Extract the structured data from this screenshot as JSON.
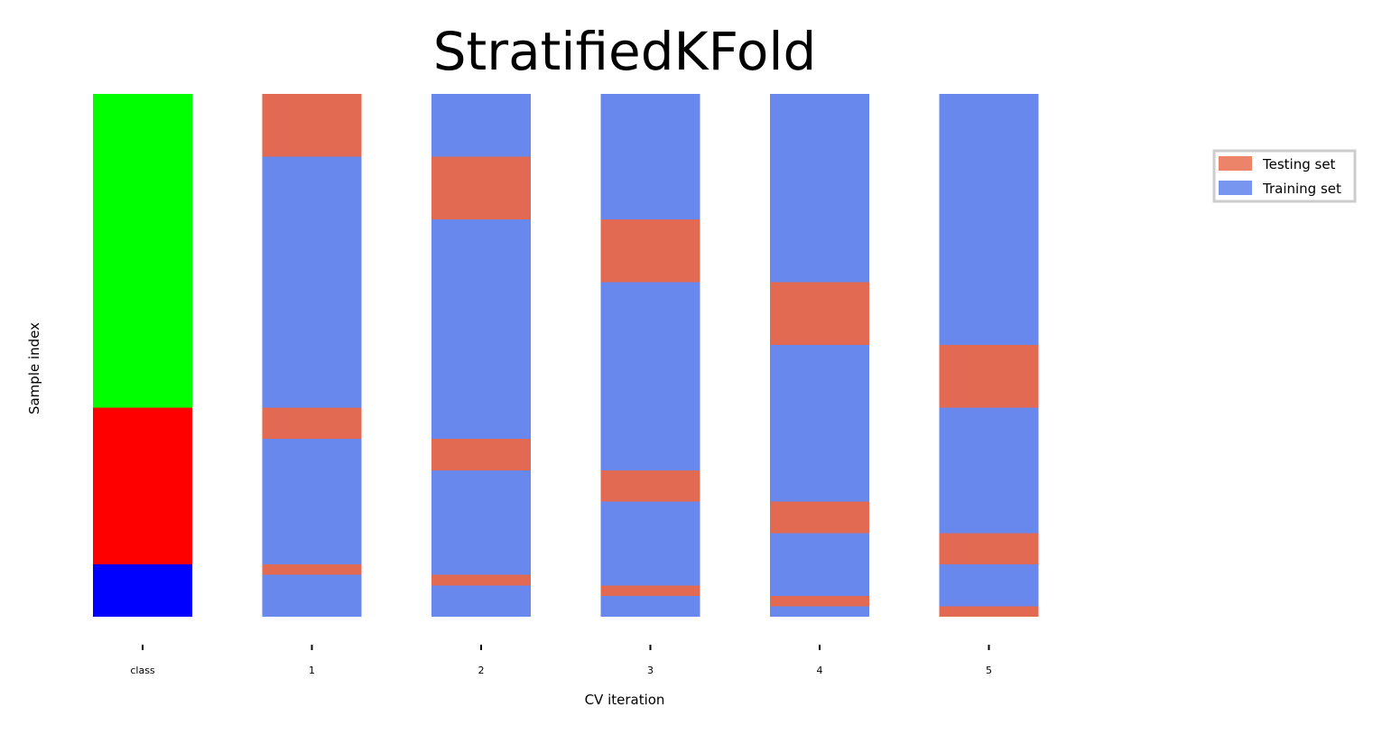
{
  "chart_data": {
    "type": "bar",
    "title": "StratifiedKFold",
    "xlabel": "CV iteration",
    "ylabel": "Sample index",
    "n_samples": 100,
    "ylim": [
      100,
      0
    ],
    "categories": [
      "class",
      "1",
      "2",
      "3",
      "4",
      "5"
    ],
    "class_column": {
      "label": "class",
      "segments": [
        {
          "start": 0,
          "end": 60,
          "color": "#00ff00"
        },
        {
          "start": 60,
          "end": 90,
          "color": "#ff0000"
        },
        {
          "start": 90,
          "end": 100,
          "color": "#0000ff"
        }
      ]
    },
    "folds": [
      {
        "label": "1",
        "testing": [
          [
            0,
            12
          ],
          [
            60,
            66
          ],
          [
            90,
            92
          ]
        ]
      },
      {
        "label": "2",
        "testing": [
          [
            12,
            24
          ],
          [
            66,
            72
          ],
          [
            92,
            94
          ]
        ]
      },
      {
        "label": "3",
        "testing": [
          [
            24,
            36
          ],
          [
            72,
            78
          ],
          [
            94,
            96
          ]
        ]
      },
      {
        "label": "4",
        "testing": [
          [
            36,
            48
          ],
          [
            78,
            84
          ],
          [
            96,
            98
          ]
        ]
      },
      {
        "label": "5",
        "testing": [
          [
            48,
            60
          ],
          [
            84,
            90
          ],
          [
            98,
            100
          ]
        ]
      }
    ],
    "series": [
      {
        "name": "Testing set",
        "color": "#e26a53"
      },
      {
        "name": "Training set",
        "color": "#6888ee"
      }
    ],
    "legend": {
      "placement": "right",
      "items": [
        {
          "name": "Testing set",
          "color": "#ec8469"
        },
        {
          "name": "Training set",
          "color": "#7896f0"
        }
      ]
    },
    "grid": false
  }
}
